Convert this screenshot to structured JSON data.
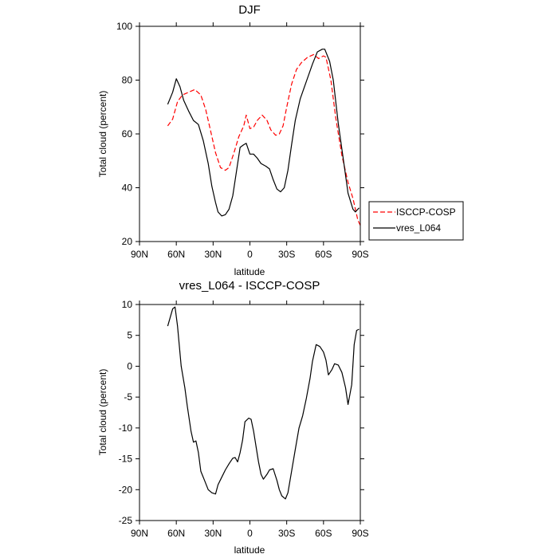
{
  "chart_data": [
    {
      "type": "line",
      "title": "DJF",
      "xlabel": "latitude",
      "ylabel": "Total cloud (percent)",
      "xlim": [
        -90,
        90
      ],
      "ylim": [
        20,
        100
      ],
      "x_ticks": [
        -90,
        -60,
        -30,
        0,
        30,
        60,
        90
      ],
      "x_tick_labels": [
        "90N",
        "60N",
        "30N",
        "0",
        "30S",
        "60S",
        "90S"
      ],
      "y_ticks": [
        20,
        40,
        60,
        80,
        100
      ],
      "y_tick_labels": [
        "20",
        "40",
        "60",
        "80",
        "100"
      ],
      "legend_position": "right",
      "series": [
        {
          "name": "ISCCP-COSP",
          "color": "#ff0000",
          "style": "dashed",
          "points": [
            [
              -67,
              63
            ],
            [
              -63,
              65.5
            ],
            [
              -59,
              72
            ],
            [
              -55,
              74.5
            ],
            [
              -50,
              75.5
            ],
            [
              -45,
              76.5
            ],
            [
              -40,
              74.5
            ],
            [
              -36,
              69
            ],
            [
              -32,
              61
            ],
            [
              -28,
              53
            ],
            [
              -24,
              47.5
            ],
            [
              -20,
              46.5
            ],
            [
              -17,
              47.5
            ],
            [
              -13,
              53
            ],
            [
              -9,
              59
            ],
            [
              -5,
              63
            ],
            [
              -3,
              67
            ],
            [
              0,
              62
            ],
            [
              3,
              62.5
            ],
            [
              6,
              65
            ],
            [
              10,
              67
            ],
            [
              14,
              65
            ],
            [
              17,
              61.5
            ],
            [
              21,
              59.5
            ],
            [
              24,
              60
            ],
            [
              27,
              63
            ],
            [
              30,
              70
            ],
            [
              34,
              78.5
            ],
            [
              38,
              84
            ],
            [
              42,
              86.5
            ],
            [
              47,
              88.5
            ],
            [
              52,
              89.5
            ],
            [
              56,
              88
            ],
            [
              60,
              89
            ],
            [
              62,
              88.5
            ],
            [
              66,
              80
            ],
            [
              70,
              66
            ],
            [
              75,
              52
            ],
            [
              80,
              42
            ],
            [
              84,
              36
            ],
            [
              88,
              28
            ],
            [
              90,
              26
            ]
          ]
        },
        {
          "name": "vres_L064",
          "color": "#000000",
          "style": "solid",
          "points": [
            [
              -67,
              71
            ],
            [
              -63,
              75.5
            ],
            [
              -60,
              80.5
            ],
            [
              -57,
              77.5
            ],
            [
              -54,
              72.5
            ],
            [
              -50,
              68.5
            ],
            [
              -46,
              65
            ],
            [
              -42,
              63.5
            ],
            [
              -38,
              57.5
            ],
            [
              -34,
              49
            ],
            [
              -31,
              40.5
            ],
            [
              -28,
              34.5
            ],
            [
              -26,
              31
            ],
            [
              -23,
              29.5
            ],
            [
              -20,
              30
            ],
            [
              -17,
              32
            ],
            [
              -14,
              37
            ],
            [
              -11,
              46
            ],
            [
              -8,
              55
            ],
            [
              -5,
              56
            ],
            [
              -3,
              56.5
            ],
            [
              0,
              52.5
            ],
            [
              3,
              52.5
            ],
            [
              6,
              51
            ],
            [
              9,
              49
            ],
            [
              13,
              48
            ],
            [
              16,
              47
            ],
            [
              19,
              43
            ],
            [
              22,
              39.5
            ],
            [
              25,
              38.5
            ],
            [
              28,
              40
            ],
            [
              31,
              46.5
            ],
            [
              34,
              56
            ],
            [
              37,
              65
            ],
            [
              41,
              73
            ],
            [
              46,
              79.5
            ],
            [
              51,
              86
            ],
            [
              55,
              90.5
            ],
            [
              59,
              91.5
            ],
            [
              61,
              91.5
            ],
            [
              65,
              87
            ],
            [
              68,
              80
            ],
            [
              72,
              64
            ],
            [
              76,
              51
            ],
            [
              80,
              38
            ],
            [
              84,
              32
            ],
            [
              86,
              31
            ],
            [
              89,
              32.5
            ]
          ]
        }
      ]
    },
    {
      "type": "line",
      "title": "vres_L064 - ISCCP-COSP",
      "xlabel": "latitude",
      "ylabel": "Total cloud (percent)",
      "xlim": [
        -90,
        90
      ],
      "ylim": [
        -25,
        10
      ],
      "x_ticks": [
        -90,
        -60,
        -30,
        0,
        30,
        60,
        90
      ],
      "x_tick_labels": [
        "90N",
        "60N",
        "30N",
        "0",
        "30S",
        "60S",
        "90S"
      ],
      "y_ticks": [
        -25,
        -20,
        -15,
        -10,
        -5,
        0,
        5,
        10
      ],
      "y_tick_labels": [
        "-25",
        "-20",
        "-15",
        "-10",
        "-5",
        "0",
        "5",
        "10"
      ],
      "series": [
        {
          "name": "vres_L064 - ISCCP-COSP",
          "color": "#000000",
          "style": "solid",
          "points": [
            [
              -67,
              6.5
            ],
            [
              -63,
              9.3
            ],
            [
              -61,
              9.6
            ],
            [
              -59,
              6.5
            ],
            [
              -56,
              0
            ],
            [
              -53,
              -3.5
            ],
            [
              -51,
              -6.5
            ],
            [
              -48,
              -10.5
            ],
            [
              -46,
              -12.3
            ],
            [
              -44,
              -12.1
            ],
            [
              -42,
              -14
            ],
            [
              -40,
              -17
            ],
            [
              -37,
              -18.5
            ],
            [
              -34,
              -20
            ],
            [
              -31,
              -20.5
            ],
            [
              -28,
              -20.7
            ],
            [
              -26,
              -19.2
            ],
            [
              -23,
              -18
            ],
            [
              -20,
              -16.8
            ],
            [
              -17,
              -15.8
            ],
            [
              -14,
              -14.9
            ],
            [
              -12,
              -14.8
            ],
            [
              -10,
              -15.5
            ],
            [
              -8,
              -14
            ],
            [
              -6,
              -12
            ],
            [
              -4,
              -9
            ],
            [
              -1,
              -8.4
            ],
            [
              1,
              -8.6
            ],
            [
              3,
              -10.5
            ],
            [
              5,
              -13
            ],
            [
              7,
              -15.5
            ],
            [
              9,
              -17.5
            ],
            [
              11,
              -18.3
            ],
            [
              14,
              -17.5
            ],
            [
              16,
              -16.8
            ],
            [
              19,
              -16.6
            ],
            [
              22,
              -18.5
            ],
            [
              24,
              -20
            ],
            [
              26,
              -21
            ],
            [
              29,
              -21.5
            ],
            [
              31,
              -20.5
            ],
            [
              34,
              -17
            ],
            [
              37,
              -13.5
            ],
            [
              40,
              -10
            ],
            [
              43,
              -8
            ],
            [
              46,
              -5.2
            ],
            [
              49,
              -2
            ],
            [
              51,
              0.8
            ],
            [
              54,
              3.5
            ],
            [
              57,
              3.2
            ],
            [
              60,
              2.3
            ],
            [
              62,
              1
            ],
            [
              64,
              -1.4
            ],
            [
              67,
              -0.5
            ],
            [
              69,
              0.4
            ],
            [
              72,
              0.2
            ],
            [
              75,
              -1
            ],
            [
              78,
              -3.5
            ],
            [
              80,
              -6.2
            ],
            [
              83,
              -3
            ],
            [
              85,
              3.5
            ],
            [
              87,
              5.8
            ],
            [
              89,
              6
            ]
          ]
        }
      ]
    }
  ]
}
